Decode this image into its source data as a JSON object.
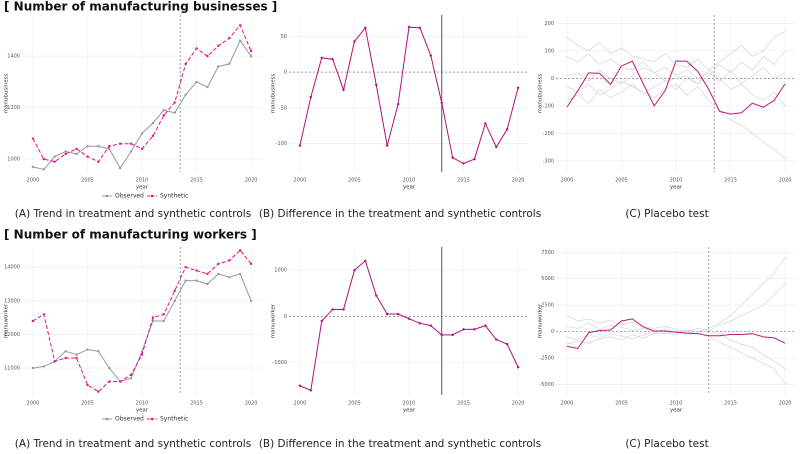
{
  "headers": [
    "[ Number of manufacturing businesses ]",
    "[ Number of manufacturing workers ]"
  ],
  "chart_data": [
    {
      "type": "line",
      "caption": "(A) Trend in treatment and synthetic controls",
      "xlabel": "year",
      "ylabel": "manubusiness",
      "x": [
        2000,
        2001,
        2002,
        2003,
        2004,
        2005,
        2006,
        2007,
        2008,
        2009,
        2010,
        2011,
        2012,
        2013,
        2014,
        2015,
        2016,
        2017,
        2018,
        2019,
        2020
      ],
      "xlim": [
        1999,
        2021
      ],
      "xticks": [
        2000,
        2005,
        2010,
        2015,
        2020
      ],
      "ylim": [
        950,
        1560
      ],
      "yticks": [
        1000,
        1200,
        1400
      ],
      "vline": 2013.5,
      "vline_style": "dashed",
      "markers": true,
      "grid": true,
      "legend": "bottom",
      "series": [
        {
          "name": "Observed",
          "color": "#999999",
          "style": "solid",
          "values": [
            970,
            960,
            1010,
            1030,
            1020,
            1050,
            1050,
            1040,
            965,
            1030,
            1100,
            1140,
            1190,
            1180,
            1250,
            1300,
            1280,
            1360,
            1370,
            1460,
            1400
          ]
        },
        {
          "name": "Synthetic",
          "color": "#e0158c",
          "style": "dashed",
          "values": [
            1080,
            1000,
            990,
            1020,
            1040,
            1010,
            990,
            1050,
            1060,
            1060,
            1040,
            1090,
            1170,
            1220,
            1370,
            1430,
            1400,
            1440,
            1470,
            1520,
            1420
          ]
        }
      ]
    },
    {
      "type": "line",
      "caption": "(B) Difference in the treatment and synthetic controls",
      "xlabel": "year",
      "ylabel": "manubusiness",
      "x": [
        2000,
        2001,
        2002,
        2003,
        2004,
        2005,
        2006,
        2007,
        2008,
        2009,
        2010,
        2011,
        2012,
        2013,
        2014,
        2015,
        2016,
        2017,
        2018,
        2019,
        2020
      ],
      "xlim": [
        1999,
        2021
      ],
      "xticks": [
        2000,
        2005,
        2010,
        2015,
        2020
      ],
      "ylim": [
        -140,
        80
      ],
      "yticks": [
        -100,
        -50,
        0,
        50
      ],
      "vline": 2013,
      "vline_style": "solid",
      "hline": 0,
      "markers": true,
      "grid": true,
      "series": [
        {
          "color": "#b0127a",
          "style": "solid",
          "values": [
            -103,
            -35,
            20,
            18,
            -25,
            43,
            62,
            -18,
            -103,
            -45,
            63,
            62,
            23,
            -43,
            -120,
            -128,
            -122,
            -72,
            -105,
            -80,
            -22
          ]
        }
      ]
    },
    {
      "type": "line",
      "caption": "(C) Placebo test",
      "xlabel": "year",
      "ylabel": "manubusiness",
      "x": [
        2000,
        2001,
        2002,
        2003,
        2004,
        2005,
        2006,
        2007,
        2008,
        2009,
        2010,
        2011,
        2012,
        2013,
        2014,
        2015,
        2016,
        2017,
        2018,
        2019,
        2020
      ],
      "xlim": [
        1999,
        2021
      ],
      "xticks": [
        2000,
        2005,
        2010,
        2015,
        2020
      ],
      "ylim": [
        -340,
        230
      ],
      "yticks": [
        -300,
        -200,
        -100,
        0,
        100,
        200
      ],
      "vline": 2013.5,
      "vline_style": "dashed",
      "hline": 0,
      "markers": false,
      "grid": true,
      "series": [
        {
          "color": "#d4d4d4",
          "style": "solid",
          "values": [
            10,
            20,
            -10,
            30,
            0,
            -20,
            10,
            40,
            20,
            -10,
            0,
            10,
            -20,
            30,
            60,
            90,
            120,
            80,
            100,
            150,
            170
          ]
        },
        {
          "color": "#d4d4d4",
          "style": "solid",
          "values": [
            -30,
            -50,
            -20,
            -60,
            -40,
            -10,
            -30,
            -50,
            -70,
            -40,
            -20,
            -60,
            -30,
            -80,
            -120,
            -150,
            -170,
            -200,
            -230,
            -260,
            -290
          ]
        },
        {
          "color": "#d4d4d4",
          "style": "solid",
          "values": [
            80,
            60,
            90,
            50,
            70,
            40,
            30,
            60,
            20,
            40,
            10,
            30,
            0,
            20,
            -10,
            30,
            -20,
            10,
            40,
            0,
            20
          ]
        },
        {
          "color": "#d4d4d4",
          "style": "solid",
          "values": [
            -80,
            -60,
            -90,
            -40,
            -70,
            -50,
            -20,
            -60,
            -30,
            -10,
            -40,
            0,
            -20,
            10,
            50,
            20,
            60,
            30,
            80,
            50,
            100
          ]
        },
        {
          "color": "#d4d4d4",
          "style": "solid",
          "values": [
            150,
            120,
            100,
            130,
            90,
            110,
            80,
            70,
            60,
            90,
            50,
            40,
            70,
            30,
            0,
            -40,
            -20,
            -60,
            -80,
            -50,
            -100
          ]
        },
        {
          "color": "#c2187f",
          "style": "solid",
          "values": [
            -105,
            -45,
            20,
            18,
            -22,
            45,
            62,
            -20,
            -100,
            -45,
            63,
            62,
            25,
            -40,
            -120,
            -130,
            -125,
            -90,
            -105,
            -80,
            -20
          ]
        }
      ]
    },
    {
      "type": "line",
      "caption": "(A) Trend in treatment and synthetic controls",
      "xlabel": "year",
      "ylabel": "manuworker",
      "x": [
        2000,
        2001,
        2002,
        2003,
        2004,
        2005,
        2006,
        2007,
        2008,
        2009,
        2010,
        2011,
        2012,
        2013,
        2014,
        2015,
        2016,
        2017,
        2018,
        2019,
        2020
      ],
      "xlim": [
        1999,
        2021
      ],
      "xticks": [
        2000,
        2005,
        2010,
        2015,
        2020
      ],
      "ylim": [
        10200,
        14600
      ],
      "yticks": [
        11000,
        12000,
        13000,
        14000
      ],
      "vline": 2013.5,
      "vline_style": "dashed",
      "markers": true,
      "grid": true,
      "legend": "bottom",
      "series": [
        {
          "name": "Observed",
          "color": "#999999",
          "style": "solid",
          "values": [
            11000,
            11050,
            11200,
            11500,
            11400,
            11550,
            11500,
            11000,
            10600,
            10700,
            11500,
            12400,
            12400,
            13000,
            13600,
            13600,
            13500,
            13800,
            13700,
            13800,
            13000
          ]
        },
        {
          "name": "Synthetic",
          "color": "#e0158c",
          "style": "dashed",
          "values": [
            12400,
            12600,
            11200,
            11300,
            11300,
            10500,
            10300,
            10600,
            10600,
            10800,
            11400,
            12500,
            12600,
            13300,
            14000,
            13900,
            13800,
            14100,
            14200,
            14500,
            14100
          ]
        }
      ]
    },
    {
      "type": "line",
      "caption": "(B) Difference in the treatment and synthetic controls",
      "xlabel": "year",
      "ylabel": "manuworker",
      "x": [
        2000,
        2001,
        2002,
        2003,
        2004,
        2005,
        2006,
        2007,
        2008,
        2009,
        2010,
        2011,
        2012,
        2013,
        2014,
        2015,
        2016,
        2017,
        2018,
        2019,
        2020
      ],
      "xlim": [
        1999,
        2021
      ],
      "xticks": [
        2000,
        2005,
        2010,
        2015,
        2020
      ],
      "ylim": [
        -1700,
        1500
      ],
      "yticks": [
        -1000,
        0,
        1000
      ],
      "vline": 2013,
      "vline_style": "solid",
      "hline": 0,
      "markers": true,
      "grid": true,
      "series": [
        {
          "color": "#b0127a",
          "style": "solid",
          "values": [
            -1500,
            -1600,
            -100,
            150,
            150,
            1000,
            1200,
            450,
            50,
            50,
            -50,
            -150,
            -200,
            -400,
            -400,
            -280,
            -280,
            -200,
            -500,
            -600,
            -1100
          ]
        }
      ]
    },
    {
      "type": "line",
      "caption": "(C) Placebo test",
      "xlabel": "year",
      "ylabel": "manuworker",
      "x": [
        2000,
        2001,
        2002,
        2003,
        2004,
        2005,
        2006,
        2007,
        2008,
        2009,
        2010,
        2011,
        2012,
        2013,
        2014,
        2015,
        2016,
        2017,
        2018,
        2019,
        2020
      ],
      "xlim": [
        1999,
        2021
      ],
      "xticks": [
        2000,
        2005,
        2010,
        2015,
        2020
      ],
      "ylim": [
        -6000,
        8000
      ],
      "yticks": [
        -5000,
        -2500,
        0,
        2500,
        5000,
        7500
      ],
      "vline": 2013,
      "vline_style": "dashed",
      "hline": 0,
      "markers": false,
      "grid": true,
      "series": [
        {
          "color": "#d4d4d4",
          "style": "solid",
          "values": [
            500,
            300,
            800,
            200,
            600,
            400,
            100,
            300,
            0,
            200,
            -100,
            100,
            0,
            300,
            800,
            1500,
            2500,
            3500,
            4500,
            5500,
            7000
          ]
        },
        {
          "color": "#d4d4d4",
          "style": "solid",
          "values": [
            -500,
            -800,
            -300,
            -600,
            -200,
            -400,
            -700,
            -300,
            -100,
            -200,
            0,
            -300,
            -100,
            -500,
            -1000,
            -1500,
            -2000,
            -2500,
            -3000,
            -3500,
            -5000
          ]
        },
        {
          "color": "#d4d4d4",
          "style": "solid",
          "values": [
            1500,
            1000,
            1200,
            800,
            1100,
            600,
            900,
            400,
            300,
            500,
            200,
            0,
            300,
            100,
            600,
            1000,
            1500,
            2000,
            2500,
            3500,
            4500
          ]
        },
        {
          "color": "#d4d4d4",
          "style": "solid",
          "values": [
            -1200,
            -900,
            -1100,
            -700,
            -500,
            -800,
            -300,
            -600,
            -200,
            -100,
            -300,
            0,
            -200,
            100,
            -200,
            -800,
            -1200,
            -1500,
            -2200,
            -2800,
            -3500
          ]
        },
        {
          "color": "#c2187f",
          "style": "solid",
          "values": [
            -1400,
            -1600,
            -100,
            100,
            150,
            1000,
            1200,
            450,
            50,
            50,
            -50,
            -150,
            -200,
            -400,
            -400,
            -280,
            -280,
            -200,
            -500,
            -600,
            -1100
          ]
        }
      ]
    }
  ]
}
